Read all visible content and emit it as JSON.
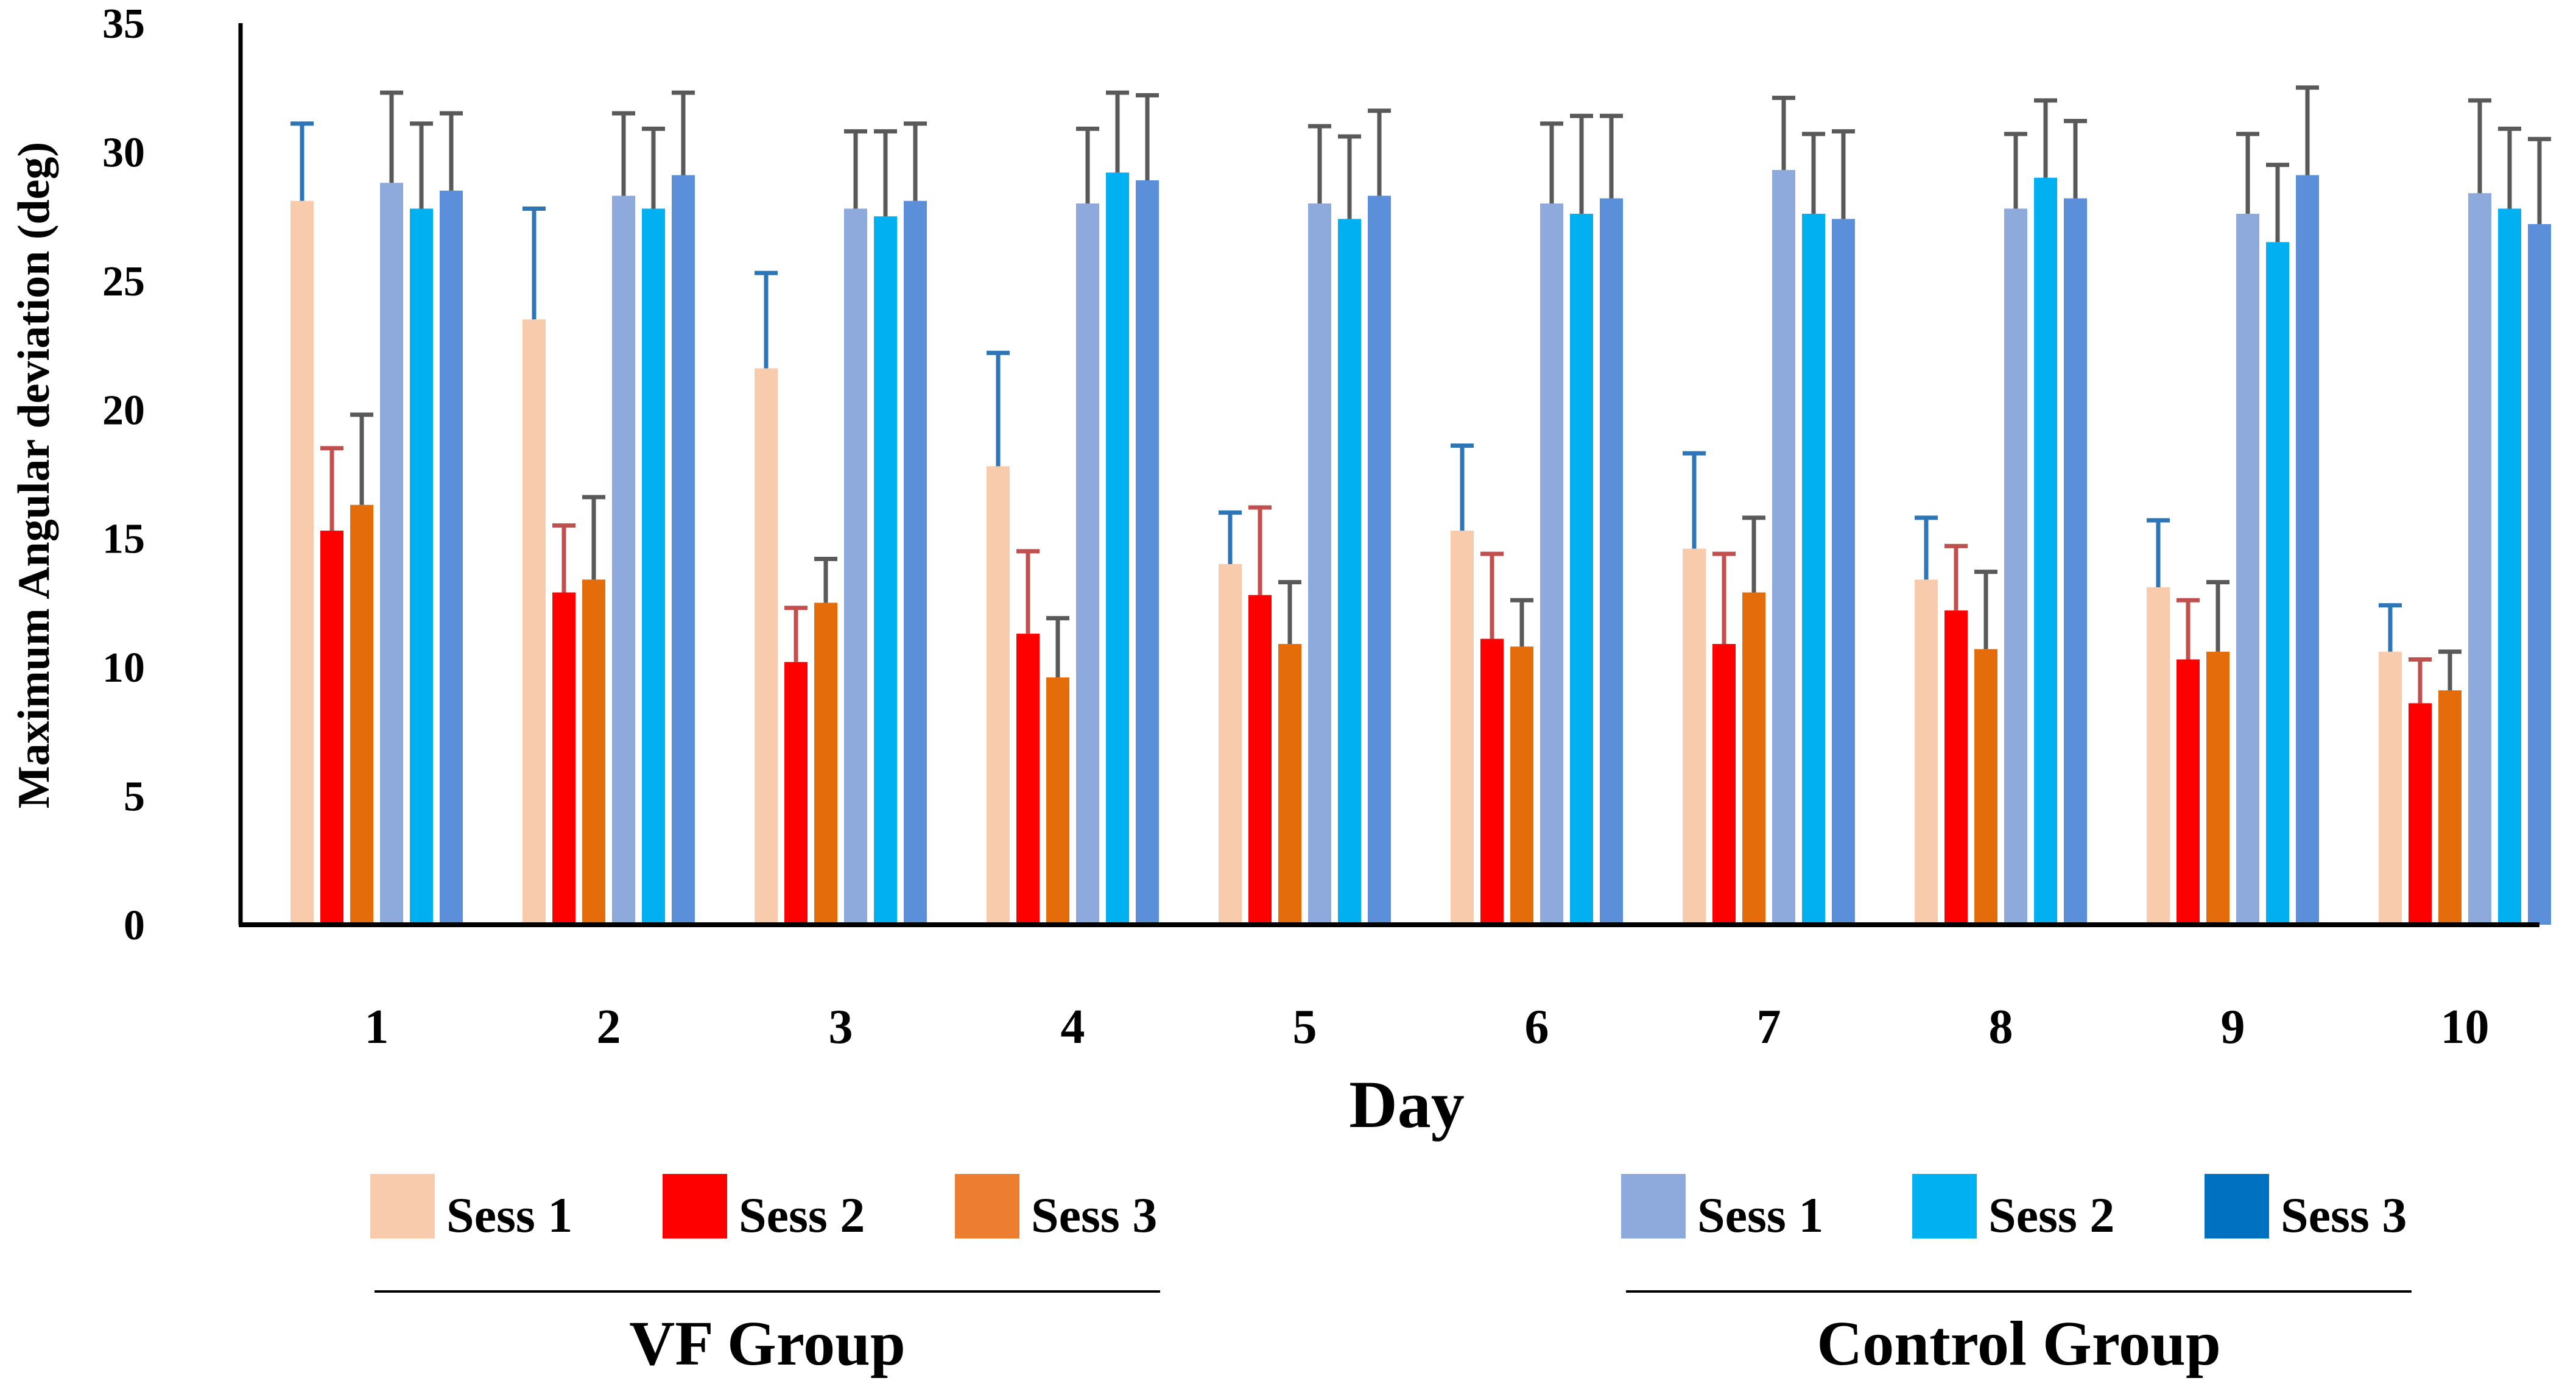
{
  "chart_data": {
    "type": "bar",
    "title": "",
    "xlabel": "Day",
    "ylabel": "Maximum Angular deviation (deg)",
    "ylim": [
      0,
      35
    ],
    "yticks": [
      0,
      5,
      10,
      15,
      20,
      25,
      30,
      35
    ],
    "grid": false,
    "categories": [
      "1",
      "2",
      "3",
      "4",
      "5",
      "6",
      "7",
      "8",
      "9",
      "10"
    ],
    "series": [
      {
        "name": "Sess 1",
        "group": "VF Group",
        "color": "#F8CBAD",
        "error_color": "#2E75B6",
        "values": [
          28.1,
          23.5,
          21.6,
          17.8,
          14.0,
          15.3,
          14.6,
          13.4,
          13.1,
          10.6
        ],
        "errors": [
          3.0,
          4.3,
          3.7,
          4.4,
          2.0,
          3.3,
          3.7,
          2.4,
          2.6,
          1.8
        ]
      },
      {
        "name": "Sess 2",
        "group": "VF Group",
        "color": "#FF0000",
        "error_color": "#C0504D",
        "values": [
          15.3,
          12.9,
          10.2,
          11.3,
          12.8,
          11.1,
          10.9,
          12.2,
          10.3,
          8.6
        ],
        "errors": [
          3.2,
          2.6,
          2.1,
          3.2,
          3.4,
          3.3,
          3.5,
          2.5,
          2.3,
          1.7
        ]
      },
      {
        "name": "Sess 3",
        "group": "VF Group",
        "color": "#E46C0A",
        "error_color": "#595959",
        "values": [
          16.3,
          13.4,
          12.5,
          9.6,
          10.9,
          10.8,
          12.9,
          10.7,
          10.6,
          9.1
        ],
        "errors": [
          3.5,
          3.2,
          1.7,
          2.3,
          2.4,
          1.8,
          2.9,
          3.0,
          2.7,
          1.5
        ]
      },
      {
        "name": "Sess 1",
        "group": "Control Group",
        "color": "#8EA9DB",
        "error_color": "#595959",
        "values": [
          28.8,
          28.3,
          27.8,
          28.0,
          28.0,
          28.0,
          29.3,
          27.8,
          27.6,
          28.4
        ],
        "errors": [
          3.5,
          3.2,
          3.0,
          2.9,
          3.0,
          3.1,
          2.8,
          2.9,
          3.1,
          3.6
        ]
      },
      {
        "name": "Sess 2",
        "group": "Control Group",
        "color": "#00B0F0",
        "error_color": "#595959",
        "values": [
          27.8,
          27.8,
          27.5,
          29.2,
          27.4,
          27.6,
          27.6,
          29.0,
          26.5,
          27.8
        ],
        "errors": [
          3.3,
          3.1,
          3.3,
          3.1,
          3.2,
          3.8,
          3.1,
          3.0,
          3.0,
          3.1
        ]
      },
      {
        "name": "Sess 3",
        "group": "Control Group",
        "color": "#5B8FD9",
        "error_color": "#595959",
        "values": [
          28.5,
          29.1,
          28.1,
          28.9,
          28.3,
          28.2,
          27.4,
          28.2,
          29.1,
          27.2
        ],
        "errors": [
          3.0,
          3.2,
          3.0,
          3.3,
          3.3,
          3.2,
          3.4,
          3.0,
          3.4,
          3.3
        ]
      }
    ],
    "legend": {
      "placement": "bottom",
      "groups": [
        {
          "label": "VF Group",
          "entries": [
            {
              "label": "Sess 1",
              "color": "#F8CBAD"
            },
            {
              "label": "Sess 2",
              "color": "#FF0000"
            },
            {
              "label": "Sess 3",
              "color": "#ED7D31"
            }
          ]
        },
        {
          "label": "Control Group",
          "entries": [
            {
              "label": "Sess 1",
              "color": "#8EA9DB"
            },
            {
              "label": "Sess 2",
              "color": "#00B0F0"
            },
            {
              "label": "Sess 3",
              "color": "#0070C0"
            }
          ]
        }
      ]
    }
  }
}
